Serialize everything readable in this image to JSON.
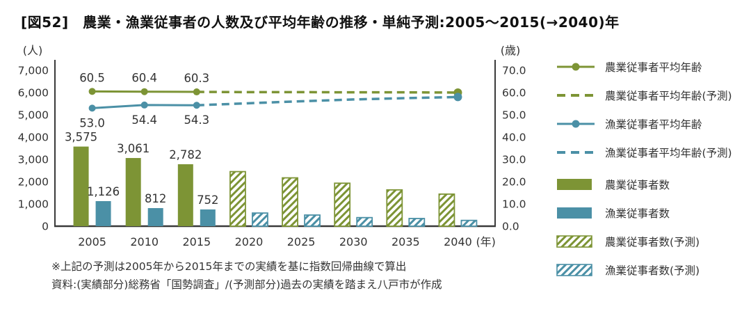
{
  "header": {
    "title": "[図52]　農業・漁業従事者の人数及び平均年齢の推移・単純予測:2005〜2015(→2040)年"
  },
  "colors": {
    "farm": "#7D9435",
    "fishery": "#4B90A6",
    "axis": "#3a3a3a",
    "text": "#333333",
    "background": "#ffffff"
  },
  "chart_data": {
    "type": "bar",
    "subtype": "combo-bar-line-dual-axis",
    "categories": [
      "2005",
      "2010",
      "2015",
      "2020",
      "2025",
      "2030",
      "2035",
      "2040"
    ],
    "x_unit": "(年)",
    "left_axis": {
      "label": "(人)",
      "min": 0,
      "max": 7000,
      "step": 1000
    },
    "right_axis": {
      "label": "(歳)",
      "min": 0,
      "max": 70,
      "step": 10
    },
    "grid": false,
    "legend_position": "right",
    "series": [
      {
        "name": "農業従事者数",
        "type": "bar",
        "style": "solid",
        "color_key": "farm",
        "values": [
          3575,
          3061,
          2782,
          null,
          null,
          null,
          null,
          null
        ],
        "show_labels": true
      },
      {
        "name": "漁業従事者数",
        "type": "bar",
        "style": "solid",
        "color_key": "fishery",
        "values": [
          1126,
          812,
          752,
          null,
          null,
          null,
          null,
          null
        ],
        "show_labels": true
      },
      {
        "name": "農業従事者数(予測)",
        "type": "bar",
        "style": "hatched",
        "color_key": "farm",
        "values": [
          null,
          null,
          null,
          2450,
          2170,
          1930,
          1630,
          1440
        ],
        "show_labels": false
      },
      {
        "name": "漁業従事者数(予測)",
        "type": "bar",
        "style": "hatched",
        "color_key": "fishery",
        "values": [
          null,
          null,
          null,
          590,
          500,
          385,
          345,
          260
        ],
        "show_labels": false
      },
      {
        "name": "農業従事者平均年齢",
        "type": "line",
        "style": "solid",
        "color_key": "farm",
        "values": [
          60.5,
          60.4,
          60.3,
          null,
          null,
          null,
          null,
          null
        ],
        "show_labels": true,
        "label_side": "above"
      },
      {
        "name": "漁業従事者平均年齢",
        "type": "line",
        "style": "solid",
        "color_key": "fishery",
        "values": [
          53.0,
          54.4,
          54.3,
          null,
          null,
          null,
          null,
          null
        ],
        "show_labels": true,
        "label_side": "below"
      },
      {
        "name": "農業従事者平均年齢(予測)",
        "type": "line",
        "style": "dashed",
        "color_key": "farm",
        "values": [
          null,
          null,
          60.3,
          60.2,
          60.2,
          60.1,
          60.1,
          60.0
        ],
        "show_labels": false,
        "end_marker": true
      },
      {
        "name": "漁業従事者平均年齢(予測)",
        "type": "line",
        "style": "dashed",
        "color_key": "fishery",
        "values": [
          null,
          null,
          54.3,
          55.2,
          56.1,
          56.9,
          57.5,
          58.0
        ],
        "show_labels": false,
        "end_marker": true
      }
    ]
  },
  "legend": {
    "items": [
      {
        "label": "農業従事者平均年齢"
      },
      {
        "label": "農業従事者平均年齢(予測)"
      },
      {
        "label": "漁業従事者平均年齢"
      },
      {
        "label": "漁業従事者平均年齢(予測)"
      },
      {
        "label": "農業従事者数"
      },
      {
        "label": "漁業従事者数"
      },
      {
        "label": "農業従事者数(予測)"
      },
      {
        "label": "漁業従事者数(予測)"
      }
    ]
  },
  "footnotes": {
    "line1": "※上記の予測は2005年から2015年までの実績を基に指数回帰曲線で算出",
    "line2": "資料:(実績部分)総務省「国勢調査」/(予測部分)過去の実績を踏まえ八戸市が作成"
  }
}
